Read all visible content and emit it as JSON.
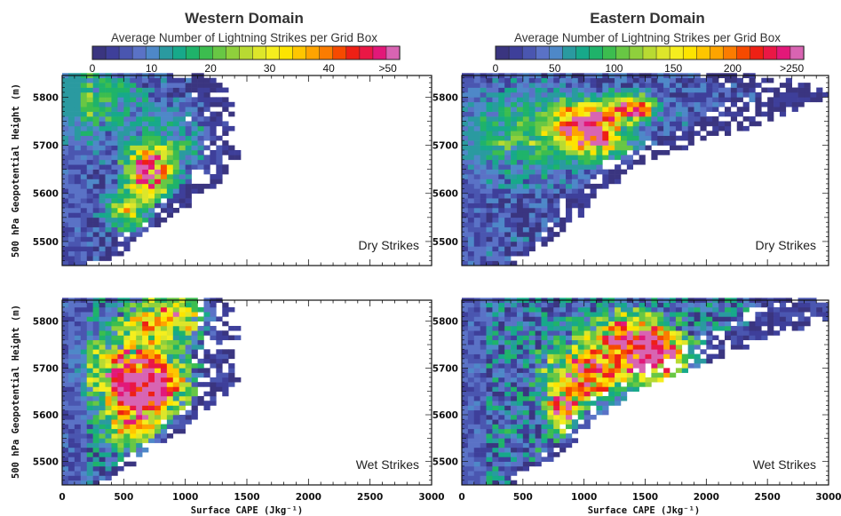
{
  "colorbars": [
    {
      "title": "Western Domain",
      "subtitle": "Average Number of Lightning Strikes per Grid Box",
      "tick_labels": [
        "0",
        "10",
        "20",
        "30",
        "40",
        ">50"
      ],
      "tick_values": [
        0,
        10,
        20,
        30,
        40,
        50
      ],
      "max": 52
    },
    {
      "title": "Eastern Domain",
      "subtitle": "Average Number of Lightning Strikes per Grid Box",
      "tick_labels": [
        "0",
        "50",
        "100",
        "150",
        "200",
        ">250"
      ],
      "tick_values": [
        0,
        50,
        100,
        150,
        200,
        250
      ],
      "max": 260
    }
  ],
  "palette": [
    "#3a3580",
    "#3e3f9a",
    "#4a56b0",
    "#5a72c6",
    "#4e88c8",
    "#2a9aa0",
    "#17a98a",
    "#1fb36a",
    "#3cbd4f",
    "#68c744",
    "#8fd03c",
    "#b8da32",
    "#dde62a",
    "#f5ee1e",
    "#fde400",
    "#fec600",
    "#fea400",
    "#fb7c00",
    "#f64a00",
    "#ee2015",
    "#ea1745",
    "#e21879",
    "#d864b2"
  ],
  "x_axis": {
    "label": "Surface CAPE (Jkg⁻¹)",
    "ticks": [
      0,
      500,
      1000,
      1500,
      2000,
      2500,
      3000
    ],
    "tick_labels": [
      "0",
      "500",
      "1000",
      "1500",
      "2000",
      "2500",
      "3000"
    ]
  },
  "y_axis": {
    "label": "500 hPa Geopotential Height (m)",
    "ticks": [
      5500,
      5600,
      5700,
      5800
    ],
    "tick_labels": [
      "5500",
      "5600",
      "5700",
      "5800"
    ]
  },
  "chart_data": [
    {
      "type": "heatmap",
      "panel": "western-dry",
      "domain": "Western Domain",
      "label": "Dry Strikes",
      "xlim": [
        0,
        3000
      ],
      "ylim": [
        5450,
        5845
      ],
      "x_bin": 50,
      "y_bin": 10,
      "extent": [
        [
          5450,
          250
        ],
        [
          5460,
          400
        ],
        [
          5470,
          500
        ],
        [
          5480,
          560
        ],
        [
          5490,
          520
        ],
        [
          5500,
          560
        ],
        [
          5510,
          620
        ],
        [
          5520,
          700
        ],
        [
          5530,
          800
        ],
        [
          5540,
          850
        ],
        [
          5550,
          880
        ],
        [
          5560,
          950
        ],
        [
          5570,
          1020
        ],
        [
          5580,
          1050
        ],
        [
          5590,
          1100
        ],
        [
          5600,
          1150
        ],
        [
          5610,
          1220
        ],
        [
          5620,
          1280
        ],
        [
          5630,
          1300
        ],
        [
          5640,
          1350
        ],
        [
          5650,
          1350
        ],
        [
          5660,
          1350
        ],
        [
          5670,
          1420
        ],
        [
          5680,
          1420
        ],
        [
          5690,
          1400
        ],
        [
          5700,
          1350
        ],
        [
          5710,
          1300
        ],
        [
          5720,
          1350
        ],
        [
          5730,
          1400
        ],
        [
          5740,
          1400
        ],
        [
          5750,
          1300
        ],
        [
          5760,
          1400
        ],
        [
          5770,
          1350
        ],
        [
          5780,
          1400
        ],
        [
          5790,
          1350
        ],
        [
          5800,
          1300
        ],
        [
          5810,
          1350
        ],
        [
          5820,
          1300
        ],
        [
          5830,
          1250
        ],
        [
          5840,
          1150
        ]
      ],
      "hotspots": [
        [
          675,
          5640,
          45,
          180,
          50
        ],
        [
          500,
          5560,
          22,
          150,
          40
        ],
        [
          200,
          5800,
          14,
          400,
          90
        ],
        [
          900,
          5700,
          10,
          300,
          60
        ]
      ],
      "scale": 52
    },
    {
      "type": "heatmap",
      "panel": "eastern-dry",
      "domain": "Eastern Domain",
      "label": "Dry Strikes",
      "xlim": [
        0,
        3000
      ],
      "ylim": [
        5450,
        5845
      ],
      "x_bin": 50,
      "y_bin": 10,
      "extent": [
        [
          5450,
          450
        ],
        [
          5460,
          450
        ],
        [
          5470,
          520
        ],
        [
          5480,
          600
        ],
        [
          5490,
          700
        ],
        [
          5500,
          750
        ],
        [
          5510,
          800
        ],
        [
          5520,
          850
        ],
        [
          5530,
          900
        ],
        [
          5540,
          950
        ],
        [
          5550,
          1000
        ],
        [
          5560,
          1000
        ],
        [
          5570,
          1050
        ],
        [
          5580,
          1050
        ],
        [
          5590,
          1100
        ],
        [
          5600,
          1150
        ],
        [
          5610,
          1200
        ],
        [
          5620,
          1300
        ],
        [
          5630,
          1300
        ],
        [
          5640,
          1350
        ],
        [
          5650,
          1400
        ],
        [
          5660,
          1500
        ],
        [
          5670,
          1600
        ],
        [
          5680,
          1700
        ],
        [
          5690,
          1850
        ],
        [
          5700,
          1950
        ],
        [
          5710,
          2050
        ],
        [
          5720,
          2200
        ],
        [
          5730,
          2350
        ],
        [
          5740,
          2450
        ],
        [
          5750,
          2550
        ],
        [
          5760,
          2650
        ],
        [
          5770,
          2750
        ],
        [
          5780,
          2850
        ],
        [
          5790,
          2950
        ],
        [
          5800,
          3000
        ],
        [
          5810,
          3000
        ],
        [
          5820,
          2850
        ],
        [
          5830,
          2700
        ],
        [
          5840,
          2500
        ]
      ],
      "hotspots": [
        [
          950,
          5745,
          220,
          220,
          40
        ],
        [
          1350,
          5770,
          200,
          200,
          30
        ],
        [
          1100,
          5700,
          150,
          250,
          40
        ],
        [
          500,
          5720,
          80,
          500,
          80
        ]
      ],
      "scale": 260
    },
    {
      "type": "heatmap",
      "panel": "western-wet",
      "domain": "Western Domain",
      "label": "Wet Strikes",
      "xlim": [
        0,
        3000
      ],
      "ylim": [
        5450,
        5845
      ],
      "x_bin": 50,
      "y_bin": 10,
      "extent": [
        [
          5450,
          350
        ],
        [
          5460,
          400
        ],
        [
          5470,
          450
        ],
        [
          5480,
          500
        ],
        [
          5490,
          560
        ],
        [
          5500,
          600
        ],
        [
          5510,
          620
        ],
        [
          5520,
          700
        ],
        [
          5530,
          800
        ],
        [
          5540,
          850
        ],
        [
          5550,
          900
        ],
        [
          5560,
          1000
        ],
        [
          5570,
          1050
        ],
        [
          5580,
          1050
        ],
        [
          5590,
          1100
        ],
        [
          5600,
          1150
        ],
        [
          5610,
          1200
        ],
        [
          5620,
          1300
        ],
        [
          5630,
          1300
        ],
        [
          5640,
          1350
        ],
        [
          5650,
          1350
        ],
        [
          5660,
          1400
        ],
        [
          5670,
          1420
        ],
        [
          5680,
          1420
        ],
        [
          5690,
          1420
        ],
        [
          5700,
          1400
        ],
        [
          5710,
          1350
        ],
        [
          5720,
          1400
        ],
        [
          5730,
          1400
        ],
        [
          5740,
          1450
        ],
        [
          5750,
          1400
        ],
        [
          5760,
          1450
        ],
        [
          5770,
          1400
        ],
        [
          5780,
          1420
        ],
        [
          5790,
          1400
        ],
        [
          5800,
          1400
        ],
        [
          5810,
          1400
        ],
        [
          5820,
          1400
        ],
        [
          5830,
          1350
        ],
        [
          5840,
          1350
        ]
      ],
      "hotspots": [
        [
          700,
          5660,
          40,
          250,
          60
        ],
        [
          500,
          5690,
          30,
          300,
          70
        ],
        [
          800,
          5800,
          30,
          300,
          50
        ],
        [
          550,
          5580,
          30,
          200,
          50
        ]
      ],
      "scale": 52
    },
    {
      "type": "heatmap",
      "panel": "eastern-wet",
      "domain": "Eastern Domain",
      "label": "Wet Strikes",
      "xlim": [
        0,
        3000
      ],
      "ylim": [
        5450,
        5845
      ],
      "x_bin": 50,
      "y_bin": 10,
      "extent": [
        [
          5450,
          450
        ],
        [
          5460,
          450
        ],
        [
          5470,
          500
        ],
        [
          5480,
          600
        ],
        [
          5490,
          700
        ],
        [
          5500,
          750
        ],
        [
          5510,
          800
        ],
        [
          5520,
          850
        ],
        [
          5530,
          900
        ],
        [
          5540,
          950
        ],
        [
          5550,
          1000
        ],
        [
          5560,
          1000
        ],
        [
          5570,
          1050
        ],
        [
          5580,
          1050
        ],
        [
          5590,
          1100
        ],
        [
          5600,
          1200
        ],
        [
          5610,
          1250
        ],
        [
          5620,
          1300
        ],
        [
          5630,
          1350
        ],
        [
          5640,
          1400
        ],
        [
          5650,
          1450
        ],
        [
          5660,
          1550
        ],
        [
          5670,
          1650
        ],
        [
          5680,
          1750
        ],
        [
          5690,
          1850
        ],
        [
          5700,
          1950
        ],
        [
          5710,
          2050
        ],
        [
          5720,
          2150
        ],
        [
          5730,
          2250
        ],
        [
          5740,
          2350
        ],
        [
          5750,
          2450
        ],
        [
          5760,
          2550
        ],
        [
          5770,
          2650
        ],
        [
          5780,
          2800
        ],
        [
          5790,
          2900
        ],
        [
          5800,
          3000
        ],
        [
          5810,
          3000
        ],
        [
          5820,
          3000
        ],
        [
          5830,
          3000
        ],
        [
          5840,
          2900
        ]
      ],
      "hotspots": [
        [
          1550,
          5710,
          260,
          260,
          50
        ],
        [
          1000,
          5680,
          200,
          300,
          60
        ],
        [
          800,
          5600,
          180,
          120,
          40
        ],
        [
          1350,
          5770,
          180,
          300,
          40
        ]
      ],
      "scale": 260
    }
  ]
}
